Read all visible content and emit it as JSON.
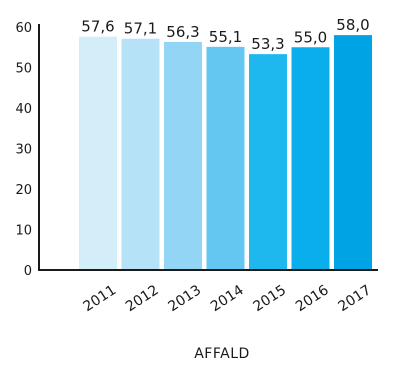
{
  "chart_data": {
    "type": "bar",
    "categories": [
      "2011",
      "2012",
      "2013",
      "2014",
      "2015",
      "2016",
      "2017"
    ],
    "values": [
      57.6,
      57.1,
      56.3,
      55.1,
      53.3,
      55.0,
      58.0
    ],
    "value_labels": [
      "57,6",
      "57,1",
      "56,3",
      "55,1",
      "53,3",
      "55,0",
      "58,0"
    ],
    "title": "",
    "xlabel": "AFFALD",
    "ylabel": "",
    "ylim": [
      0,
      60
    ],
    "yticks": [
      "0",
      "10",
      "20",
      "30",
      "40",
      "50",
      "60"
    ],
    "grid": false,
    "bar_colors": [
      "#d4eef9",
      "#b6e2f7",
      "#92d5f4",
      "#64c7f2",
      "#1fb8ee",
      "#0aaeea",
      "#00a3e4"
    ],
    "axis_color": "#1a1a1a"
  }
}
